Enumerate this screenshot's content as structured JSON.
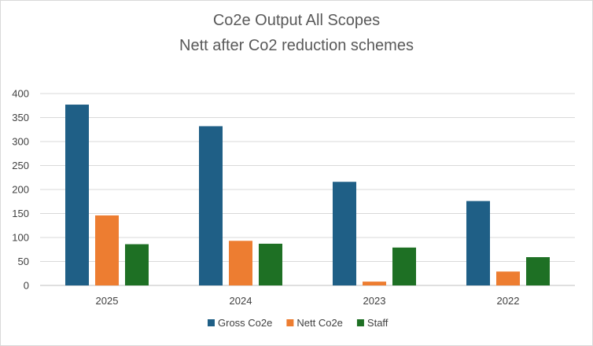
{
  "chart_data": {
    "type": "bar",
    "title": "Co2e Output All Scopes",
    "subtitle": "Nett after Co2 reduction schemes",
    "categories": [
      "2025",
      "2024",
      "2023",
      "2022"
    ],
    "series": [
      {
        "name": "Gross Co2e",
        "color": "#1f5f86",
        "values": [
          377,
          332,
          216,
          176
        ]
      },
      {
        "name": "Nett Co2e",
        "color": "#ed7d31",
        "values": [
          146,
          93,
          8,
          29
        ]
      },
      {
        "name": "Staff",
        "color": "#1e7024",
        "values": [
          86,
          87,
          79,
          59
        ]
      }
    ],
    "ylim": [
      0,
      400
    ],
    "yticks": [
      "0",
      "50",
      "100",
      "150",
      "200",
      "250",
      "300",
      "350",
      "400"
    ],
    "grid": true,
    "legend": "bottom"
  }
}
